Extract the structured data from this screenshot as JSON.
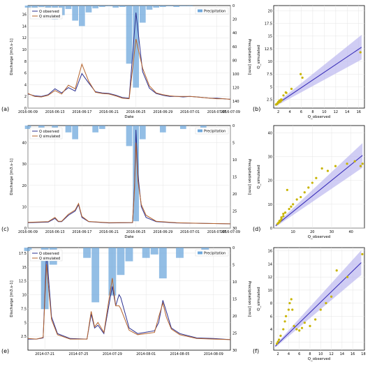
{
  "colors": {
    "observed": "#2b2f8f",
    "simulated": "#b5642d",
    "precip": "#6fa8dc",
    "scatter": "#c8b400",
    "fit": "#3a2fb8",
    "band": "#bcb8f0"
  },
  "chart_data": [
    {
      "id": "a",
      "type": "line",
      "panel_label": "(a)",
      "xlabel": "Date",
      "ylabel": "Discharge [m3.s-1]",
      "y2label": "Precipitation [mm]",
      "xlim": [
        0,
        30
      ],
      "ylim": [
        0,
        17.5
      ],
      "y2lim": [
        150,
        0
      ],
      "xticks": [
        0,
        4,
        8,
        12,
        16,
        20,
        24,
        28,
        30
      ],
      "xticklabels": [
        "2016-06-09",
        "2016-06-13",
        "2016-06-17",
        "2016-06-21",
        "2016-06-25",
        "2016-06-29",
        "2016-07-01",
        "2016-07-05",
        "2016-07-09"
      ],
      "yticks": [
        0,
        2,
        4,
        6,
        8,
        10,
        12,
        14,
        16
      ],
      "y2ticks": [
        0,
        20,
        40,
        60,
        80,
        100,
        120,
        140
      ],
      "legend": [
        "Q observed",
        "Q simulated"
      ],
      "legend2": "Precipitation",
      "series": [
        {
          "name": "Q observed",
          "x": [
            0,
            1,
            2,
            3,
            4,
            5,
            6,
            7,
            8,
            9,
            10,
            11,
            12,
            13,
            14,
            15,
            16,
            17,
            18,
            19,
            20,
            21,
            22,
            23,
            24,
            25,
            26,
            27,
            28,
            29,
            30
          ],
          "values": [
            2.4,
            2.1,
            2.0,
            2.3,
            3.3,
            2.6,
            3.5,
            2.9,
            5.9,
            4.3,
            2.8,
            2.6,
            2.5,
            2.2,
            1.8,
            1.7,
            16.3,
            6.2,
            3.4,
            2.5,
            2.2,
            2.0,
            2.0,
            1.9,
            2.0,
            1.9,
            1.8,
            1.7,
            1.7,
            1.6,
            1.5
          ]
        },
        {
          "name": "Q simulated",
          "x": [
            0,
            1,
            2,
            3,
            4,
            5,
            6,
            7,
            8,
            9,
            10,
            11,
            12,
            13,
            14,
            15,
            16,
            17,
            18,
            19,
            20,
            21,
            22,
            23,
            24,
            25,
            26,
            27,
            28,
            29,
            30
          ],
          "values": [
            2.5,
            2.0,
            1.9,
            2.2,
            3.0,
            2.4,
            3.9,
            3.3,
            7.5,
            4.6,
            2.7,
            2.5,
            2.4,
            2.1,
            1.7,
            1.6,
            11.8,
            6.8,
            3.8,
            2.6,
            2.3,
            2.1,
            2.0,
            2.0,
            2.0,
            1.9,
            1.8,
            1.7,
            1.6,
            1.6,
            1.5
          ]
        }
      ],
      "precip": {
        "x": [
          0,
          1,
          2,
          3,
          4,
          5,
          6,
          7,
          8,
          9,
          10,
          11,
          12,
          13,
          14,
          15,
          16,
          17,
          18,
          19,
          20,
          21,
          22,
          23,
          24,
          25,
          26,
          27,
          28,
          29,
          30
        ],
        "values": [
          3,
          4,
          2,
          10,
          20,
          14,
          5,
          22,
          30,
          10,
          4,
          2,
          1,
          3,
          2,
          85,
          120,
          25,
          6,
          3,
          2,
          1,
          2,
          1,
          1,
          0,
          0,
          0,
          0,
          0,
          0
        ]
      }
    },
    {
      "id": "b",
      "type": "scatter",
      "panel_label": "(b)",
      "xlabel": "Q_observed",
      "ylabel": "Q_simulated",
      "xlim": [
        1.2,
        17
      ],
      "ylim": [
        0.8,
        21
      ],
      "xticks": [
        2,
        4,
        6,
        8,
        10,
        12,
        14,
        16
      ],
      "yticks": [
        2.5,
        5.0,
        7.5,
        10.0,
        12.5,
        15.0,
        17.5,
        20.0
      ],
      "x": [
        1.6,
        1.7,
        1.8,
        1.9,
        2.0,
        2.0,
        2.1,
        2.2,
        2.2,
        2.3,
        2.4,
        2.5,
        2.6,
        2.9,
        3.3,
        3.4,
        4.3,
        5.9,
        6.2,
        16.3
      ],
      "values": [
        1.5,
        1.6,
        1.6,
        1.8,
        1.9,
        2.0,
        2.0,
        2.0,
        2.3,
        2.2,
        2.1,
        2.5,
        2.4,
        3.3,
        3.9,
        3.8,
        4.6,
        7.5,
        6.8,
        11.8
      ],
      "fit": {
        "x": [
          1.5,
          16.5
        ],
        "y": [
          1.4,
          12.8
        ]
      }
    },
    {
      "id": "c",
      "type": "line",
      "panel_label": "(c)",
      "xlabel": "Date",
      "ylabel": "Discharge [m3.s-1]",
      "y2label": "Precipitation [mm]",
      "xlim": [
        0,
        30
      ],
      "ylim": [
        0,
        48
      ],
      "y2lim": [
        30,
        0
      ],
      "xticks": [
        0,
        4,
        8,
        12,
        16,
        20,
        24,
        28,
        30
      ],
      "xticklabels": [
        "2016-06-09",
        "2016-06-13",
        "2016-06-17",
        "2016-06-21",
        "2016-06-25",
        "2016-06-29",
        "2016-07-01",
        "2016-07-05",
        "2016-07-09"
      ],
      "yticks": [
        0,
        10,
        20,
        30,
        40
      ],
      "y2ticks": [
        0,
        5,
        10,
        15,
        20,
        25,
        30
      ],
      "legend": [
        "Q observed",
        "Q simulated"
      ],
      "legend2": "Precipitation",
      "series": [
        {
          "name": "Q observed",
          "x": [
            0,
            3,
            4,
            4.5,
            5,
            6,
            7,
            7.5,
            8,
            9,
            12,
            15.5,
            15.8,
            16,
            16.3,
            16.8,
            17.5,
            19,
            22,
            26,
            30
          ],
          "values": [
            2.5,
            2.8,
            4.5,
            3,
            3,
            6,
            8,
            11,
            5,
            3,
            2.4,
            2.5,
            20,
            46,
            25,
            10,
            5,
            3,
            2.4,
            2.2,
            2.0
          ]
        },
        {
          "name": "Q simulated",
          "x": [
            0,
            3,
            4,
            4.5,
            5,
            6,
            7,
            7.5,
            8,
            9,
            12,
            15.5,
            15.8,
            16,
            16.3,
            16.8,
            17.5,
            19,
            22,
            26,
            30
          ],
          "values": [
            2.7,
            3.0,
            5,
            3.2,
            3.2,
            6.5,
            8.5,
            11.5,
            5.5,
            3.1,
            2.5,
            2.6,
            18,
            40,
            22,
            11,
            6,
            3.2,
            2.5,
            2.2,
            2.0
          ]
        }
      ],
      "precip": {
        "x": [
          0,
          2,
          4,
          6,
          7,
          10,
          11,
          15,
          16,
          17,
          20,
          23,
          26
        ],
        "values": [
          1,
          2,
          3,
          2,
          4,
          2,
          1,
          6,
          28,
          4,
          2,
          1,
          1
        ]
      }
    },
    {
      "id": "d",
      "type": "scatter",
      "panel_label": "(d)",
      "xlabel": "Q_observed",
      "ylabel": "Q_simulated",
      "xlim": [
        0,
        47
      ],
      "ylim": [
        0,
        43
      ],
      "xticks": [
        10,
        20,
        30,
        40
      ],
      "yticks": [
        0,
        10,
        20,
        30,
        40
      ],
      "x": [
        2,
        2.5,
        3,
        3,
        3.5,
        4,
        4,
        5,
        5,
        6,
        7,
        8,
        9,
        10,
        12,
        14,
        16,
        18,
        20,
        22,
        25,
        28,
        32,
        38,
        42,
        45,
        46
      ],
      "values": [
        1.8,
        2.2,
        2.6,
        3,
        3.2,
        3.8,
        4.5,
        5,
        6,
        6.5,
        16,
        8,
        9,
        10,
        12,
        13,
        15,
        17,
        19,
        21,
        25,
        24,
        26,
        27,
        28,
        26,
        27
      ],
      "fit": {
        "x": [
          1,
          46
        ],
        "y": [
          1,
          30.5
        ]
      }
    },
    {
      "id": "e",
      "type": "line",
      "panel_label": "(e)",
      "xlabel": "",
      "ylabel": "Discharge [m3.s-1]",
      "y2label": "Precipitation [mm]",
      "xlim": [
        0,
        24
      ],
      "ylim": [
        0,
        18.5
      ],
      "y2lim": [
        30,
        0
      ],
      "xticks": [
        2,
        6,
        10,
        14,
        18,
        22
      ],
      "xticklabels": [
        "2014-07-21",
        "2014-07-25",
        "2014-07-29",
        "2014-08-01",
        "2014-08-05",
        "2014-08-09"
      ],
      "yticks": [
        2.5,
        5.0,
        7.5,
        10.0,
        12.5,
        15.0,
        17.5
      ],
      "y2ticks": [
        0,
        5,
        10,
        15,
        20,
        25,
        30
      ],
      "legend": [
        "Q observed",
        "Q simulated"
      ],
      "legend2": "Precipitation",
      "series": [
        {
          "name": "Q observed",
          "x": [
            0,
            1,
            1.8,
            2.2,
            2.8,
            3.5,
            5,
            7,
            7.5,
            7.9,
            8.3,
            9,
            10,
            10.4,
            10.8,
            11,
            12,
            13,
            15,
            15.5,
            16,
            16.4,
            17,
            18,
            20,
            22,
            24
          ],
          "values": [
            2.0,
            2.0,
            2.2,
            17.8,
            6,
            3,
            2.1,
            2.0,
            6.5,
            4,
            4.5,
            3,
            11.5,
            8,
            10,
            9.5,
            4,
            3,
            3.5,
            5,
            9,
            7,
            4,
            3,
            2.2,
            2.1,
            1.9
          ]
        },
        {
          "name": "Q simulated",
          "x": [
            0,
            1,
            1.8,
            2.2,
            2.8,
            3.5,
            5,
            7,
            7.5,
            7.9,
            8.3,
            9,
            10,
            10.4,
            10.8,
            11,
            12,
            13,
            15,
            15.5,
            16,
            16.4,
            17,
            18,
            20,
            22,
            24
          ],
          "values": [
            2.1,
            2.0,
            2.3,
            15.5,
            5.5,
            2.8,
            2.0,
            2.0,
            7,
            4.2,
            5,
            3.2,
            13,
            8,
            8,
            7.5,
            3.6,
            2.8,
            3.2,
            6,
            8.5,
            6,
            3.8,
            2.8,
            2.1,
            2.0,
            1.9
          ]
        }
      ],
      "precip": {
        "x": [
          0,
          2,
          3,
          7,
          8,
          10,
          11,
          12,
          14,
          15,
          16,
          18,
          21
        ],
        "values": [
          1,
          18,
          5,
          3,
          16,
          14,
          8,
          4,
          3,
          2,
          9,
          3,
          1
        ]
      }
    },
    {
      "id": "f",
      "type": "scatter",
      "panel_label": "(f)",
      "xlabel": "Q_observed",
      "ylabel": "Q_simulated",
      "xlim": [
        1.2,
        18.2
      ],
      "ylim": [
        0.8,
        16.5
      ],
      "xticks": [
        2,
        4,
        6,
        8,
        10,
        12,
        14,
        16,
        18
      ],
      "yticks": [
        2,
        4,
        6,
        8,
        10,
        12,
        14,
        16
      ],
      "x": [
        1.8,
        2,
        2.2,
        2.5,
        3,
        3.3,
        3.5,
        4,
        4.2,
        4.5,
        4.7,
        5,
        5.5,
        6,
        6.5,
        7,
        8,
        9,
        10,
        11,
        12,
        13,
        15,
        17.8
      ],
      "values": [
        1.8,
        2.1,
        2.4,
        3,
        4,
        5.2,
        6,
        7,
        8,
        8.6,
        7,
        4.5,
        4,
        3.8,
        4.2,
        5,
        4.5,
        5.5,
        7,
        8,
        9,
        13,
        12,
        15.5
      ],
      "fit": {
        "x": [
          1.5,
          17.6
        ],
        "y": [
          1.4,
          14.2
        ]
      }
    }
  ]
}
